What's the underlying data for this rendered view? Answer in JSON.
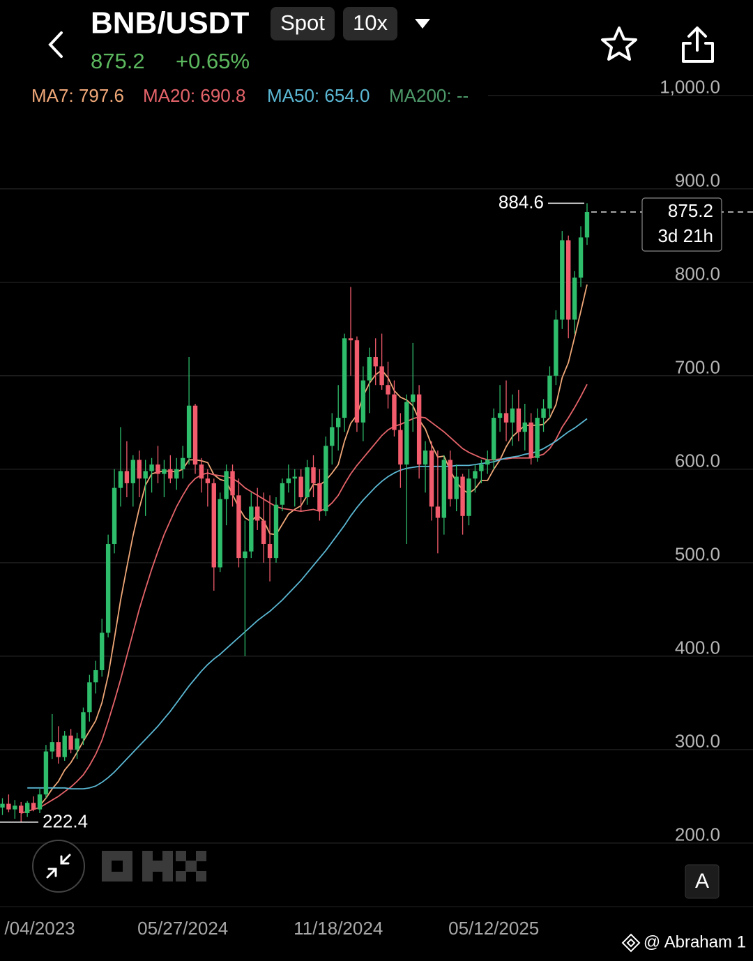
{
  "header": {
    "title": "BNB/USDT",
    "market": "Spot",
    "leverage": "10x",
    "price": "875.2",
    "change": "+0.65%"
  },
  "chart_data": {
    "type": "candlestick",
    "categories": [
      null,
      null,
      null,
      null,
      null,
      null,
      "/04/2023",
      null,
      null,
      null,
      null,
      null,
      null,
      null,
      null,
      null,
      null,
      null,
      null,
      null,
      null,
      null,
      null,
      null,
      null,
      null,
      null,
      null,
      null,
      "05/27/2024",
      null,
      null,
      null,
      null,
      null,
      null,
      null,
      null,
      null,
      null,
      null,
      null,
      null,
      null,
      null,
      null,
      null,
      null,
      null,
      null,
      null,
      null,
      null,
      null,
      "11/18/2024",
      null,
      null,
      null,
      null,
      null,
      null,
      null,
      null,
      null,
      null,
      null,
      null,
      null,
      null,
      null,
      null,
      null,
      null,
      null,
      null,
      null,
      null,
      null,
      null,
      "05/12/2025",
      null,
      null,
      null,
      null,
      null,
      null,
      null,
      null,
      null,
      null,
      null,
      null,
      null,
      null,
      null
    ],
    "open": [
      238,
      242,
      236,
      240,
      232,
      243,
      236,
      252,
      298,
      308,
      292,
      315,
      300,
      312,
      340,
      372,
      385,
      425,
      520,
      580,
      598,
      585,
      610,
      590,
      598,
      605,
      595,
      600,
      590,
      600,
      612,
      668,
      605,
      590,
      585,
      495,
      568,
      598,
      572,
      505,
      512,
      560,
      545,
      520,
      505,
      562,
      585,
      590,
      592,
      570,
      602,
      585,
      555,
      625,
      645,
      655,
      740,
      738,
      650,
      695,
      720,
      710,
      690,
      680,
      642,
      605,
      672,
      680,
      605,
      620,
      560,
      548,
      610,
      568,
      592,
      550,
      590,
      598,
      605,
      610,
      655,
      660,
      650,
      665,
      640,
      650,
      612,
      655,
      665,
      700,
      760,
      845,
      760,
      805,
      848
    ],
    "high": [
      248,
      252,
      246,
      244,
      245,
      250,
      258,
      305,
      338,
      325,
      320,
      322,
      318,
      345,
      380,
      395,
      440,
      530,
      600,
      645,
      630,
      615,
      620,
      610,
      612,
      625,
      610,
      615,
      612,
      625,
      720,
      670,
      612,
      600,
      590,
      575,
      605,
      605,
      590,
      545,
      575,
      580,
      575,
      572,
      570,
      590,
      605,
      600,
      600,
      610,
      615,
      600,
      635,
      660,
      690,
      745,
      795,
      742,
      710,
      730,
      740,
      745,
      715,
      695,
      660,
      680,
      735,
      690,
      630,
      630,
      620,
      615,
      620,
      605,
      595,
      600,
      605,
      610,
      620,
      665,
      690,
      695,
      680,
      685,
      670,
      660,
      665,
      675,
      710,
      770,
      855,
      850,
      812,
      860,
      884.6
    ],
    "low": [
      230,
      233,
      226,
      222.4,
      228,
      234,
      232,
      248,
      290,
      285,
      288,
      296,
      290,
      305,
      330,
      360,
      378,
      420,
      510,
      560,
      570,
      560,
      570,
      550,
      575,
      585,
      570,
      585,
      578,
      590,
      605,
      595,
      575,
      560,
      470,
      490,
      540,
      560,
      495,
      400,
      505,
      535,
      500,
      480,
      500,
      555,
      575,
      560,
      555,
      562,
      570,
      545,
      550,
      605,
      620,
      640,
      700,
      640,
      630,
      660,
      690,
      685,
      665,
      635,
      580,
      520,
      640,
      590,
      575,
      545,
      510,
      530,
      560,
      555,
      530,
      540,
      575,
      585,
      595,
      600,
      640,
      630,
      625,
      630,
      620,
      605,
      608,
      640,
      655,
      690,
      750,
      740,
      745,
      795,
      840
    ],
    "close": [
      242,
      236,
      240,
      232,
      243,
      236,
      252,
      298,
      308,
      292,
      315,
      300,
      312,
      340,
      372,
      385,
      425,
      520,
      580,
      598,
      585,
      610,
      590,
      598,
      605,
      595,
      600,
      590,
      600,
      612,
      668,
      605,
      590,
      585,
      495,
      568,
      598,
      572,
      505,
      512,
      560,
      545,
      520,
      505,
      562,
      585,
      590,
      592,
      570,
      602,
      585,
      555,
      625,
      645,
      655,
      740,
      738,
      650,
      695,
      720,
      710,
      690,
      680,
      642,
      605,
      672,
      680,
      605,
      620,
      560,
      548,
      610,
      568,
      592,
      550,
      590,
      598,
      605,
      610,
      655,
      660,
      650,
      665,
      640,
      650,
      612,
      655,
      665,
      700,
      760,
      845,
      760,
      805,
      848,
      875.2
    ],
    "up_color": "#2ebd6b",
    "down_color": "#f25c6c",
    "ma": [
      {
        "name": "MA7",
        "label": "MA7: 797.6",
        "color": "#f0a878",
        "values": [
          null,
          null,
          null,
          null,
          null,
          null,
          240,
          248,
          258,
          266,
          278,
          286,
          297,
          309,
          320,
          331,
          350,
          379,
          419,
          460,
          495,
          529,
          558,
          583,
          595,
          597,
          598,
          598,
          597,
          600,
          610,
          610,
          609,
          607,
          594,
          589,
          587,
          573,
          559,
          548,
          544,
          551,
          545,
          531,
          530,
          541,
          552,
          557,
          561,
          572,
          584,
          583,
          588,
          596,
          605,
          630,
          649,
          658,
          678,
          692,
          701,
          706,
          698,
          684,
          677,
          674,
          668,
          653,
          643,
          626,
          613,
          614,
          599,
          586,
          578,
          574,
          579,
          588,
          588,
          600,
          610,
          624,
          635,
          641,
          647,
          647,
          647,
          648,
          655,
          669,
          698,
          714,
          741,
          769,
          797.6
        ]
      },
      {
        "name": "MA20",
        "label": "MA20: 690.8",
        "color": "#e5646a",
        "values": [
          null,
          null,
          null,
          232,
          234,
          236,
          238,
          242,
          246,
          250,
          255,
          260,
          266,
          273,
          283,
          295,
          310,
          330,
          352,
          375,
          400,
          425,
          450,
          472,
          493,
          512,
          530,
          545,
          560,
          572,
          583,
          590,
          594,
          596,
          594,
          593,
          592,
          590,
          586,
          580,
          576,
          572,
          568,
          564,
          560,
          558,
          557,
          556,
          555,
          556,
          557,
          555,
          558,
          564,
          572,
          584,
          595,
          604,
          612,
          620,
          628,
          636,
          642,
          646,
          648,
          651,
          654,
          656,
          655,
          650,
          645,
          640,
          634,
          628,
          622,
          618,
          615,
          612,
          610,
          610,
          611,
          611,
          612,
          612,
          612,
          612,
          614,
          616,
          622,
          632,
          645,
          655,
          666,
          678,
          690.8
        ]
      },
      {
        "name": "MA50",
        "label": "MA50: 654.0",
        "color": "#5bb8d4",
        "values": [
          null,
          null,
          null,
          null,
          259,
          259,
          259,
          259,
          259,
          259,
          259,
          258,
          258,
          258,
          259,
          261,
          265,
          270,
          276,
          283,
          290,
          297,
          304,
          311,
          318,
          325,
          333,
          341,
          350,
          359,
          368,
          376,
          384,
          391,
          397,
          402,
          408,
          414,
          420,
          426,
          432,
          438,
          443,
          448,
          454,
          460,
          467,
          474,
          481,
          489,
          497,
          505,
          513,
          522,
          531,
          540,
          550,
          559,
          567,
          574,
          581,
          587,
          592,
          596,
          599,
          601,
          602,
          603,
          603,
          603,
          603,
          603,
          603,
          604,
          604,
          604,
          605,
          606,
          607,
          608,
          610,
          612,
          613,
          614,
          616,
          617,
          619,
          622,
          626,
          630,
          635,
          640,
          644,
          649,
          654.0
        ]
      },
      {
        "name": "MA200",
        "label": "MA200: --",
        "color": "#4e9a6a"
      }
    ],
    "countdown": "3d 21h",
    "ylim": [
      132,
      1011
    ],
    "yticks": [
      {
        "value": 200,
        "label": "200.0"
      },
      {
        "value": 300,
        "label": "300.0"
      },
      {
        "value": 400,
        "label": "400.0"
      },
      {
        "value": 500,
        "label": "500.0"
      },
      {
        "value": 600,
        "label": "600.0"
      },
      {
        "value": 700,
        "label": "700.0"
      },
      {
        "value": 800,
        "label": "800.0"
      },
      {
        "value": 900,
        "label": "900.0"
      },
      {
        "value": 1000,
        "label": "1,000.0"
      }
    ],
    "grid": true
  },
  "scale_button": "A",
  "watermark": "@ Abraham 1"
}
